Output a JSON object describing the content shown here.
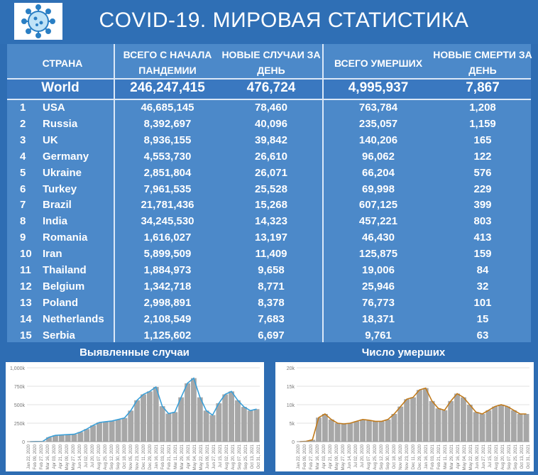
{
  "header": {
    "title": "COVID-19. МИРОВАЯ СТАТИСТИКА",
    "logo": "coronavirus-icon"
  },
  "table": {
    "columns": [
      "СТРАНА",
      "ВСЕГО С НАЧАЛА ПАНДЕМИИ",
      "НОВЫЕ СЛУЧАИ ЗА ДЕНЬ",
      "ВСЕГО УМЕРШИХ",
      "НОВЫЕ СМЕРТИ ЗА ДЕНЬ"
    ],
    "world": {
      "name": "World",
      "total_cases": "246,247,415",
      "new_cases": "476,724",
      "total_deaths": "4,995,937",
      "new_deaths": "7,867"
    },
    "rows": [
      {
        "rank": "1",
        "country": "USA",
        "total_cases": "46,685,145",
        "new_cases": "78,460",
        "total_deaths": "763,784",
        "new_deaths": "1,208"
      },
      {
        "rank": "2",
        "country": "Russia",
        "total_cases": "8,392,697",
        "new_cases": "40,096",
        "total_deaths": "235,057",
        "new_deaths": "1,159"
      },
      {
        "rank": "3",
        "country": "UK",
        "total_cases": "8,936,155",
        "new_cases": "39,842",
        "total_deaths": "140,206",
        "new_deaths": "165"
      },
      {
        "rank": "4",
        "country": "Germany",
        "total_cases": "4,553,730",
        "new_cases": "26,610",
        "total_deaths": "96,062",
        "new_deaths": "122"
      },
      {
        "rank": "5",
        "country": "Ukraine",
        "total_cases": "2,851,804",
        "new_cases": "26,071",
        "total_deaths": "66,204",
        "new_deaths": "576"
      },
      {
        "rank": "6",
        "country": "Turkey",
        "total_cases": "7,961,535",
        "new_cases": "25,528",
        "total_deaths": "69,998",
        "new_deaths": "229"
      },
      {
        "rank": "7",
        "country": "Brazil",
        "total_cases": "21,781,436",
        "new_cases": "15,268",
        "total_deaths": "607,125",
        "new_deaths": "399"
      },
      {
        "rank": "8",
        "country": "India",
        "total_cases": "34,245,530",
        "new_cases": "14,323",
        "total_deaths": "457,221",
        "new_deaths": "803"
      },
      {
        "rank": "9",
        "country": "Romania",
        "total_cases": "1,616,027",
        "new_cases": "13,197",
        "total_deaths": "46,430",
        "new_deaths": "413"
      },
      {
        "rank": "10",
        "country": "Iran",
        "total_cases": "5,899,509",
        "new_cases": "11,409",
        "total_deaths": "125,875",
        "new_deaths": "159"
      },
      {
        "rank": "11",
        "country": "Thailand",
        "total_cases": "1,884,973",
        "new_cases": "9,658",
        "total_deaths": "19,006",
        "new_deaths": "84"
      },
      {
        "rank": "12",
        "country": "Belgium",
        "total_cases": "1,342,718",
        "new_cases": "8,771",
        "total_deaths": "25,946",
        "new_deaths": "32"
      },
      {
        "rank": "13",
        "country": "Poland",
        "total_cases": "2,998,891",
        "new_cases": "8,378",
        "total_deaths": "76,773",
        "new_deaths": "101"
      },
      {
        "rank": "14",
        "country": "Netherlands",
        "total_cases": "2,108,549",
        "new_cases": "7,683",
        "total_deaths": "18,371",
        "new_deaths": "15"
      },
      {
        "rank": "15",
        "country": "Serbia",
        "total_cases": "1,125,602",
        "new_cases": "6,697",
        "total_deaths": "9,761",
        "new_deaths": "63"
      }
    ]
  },
  "colors": {
    "background": "#2e6db3",
    "table_bg": "#4c89c9",
    "cases_line": "#3a9fd8",
    "deaths_line": "#c07a1c",
    "bars": "#a7a7a7"
  },
  "chart_data": [
    {
      "type": "bar",
      "title": "Выявленные случаи",
      "ylim": [
        0,
        1000000
      ],
      "yticks": [
        "0",
        "250k",
        "500k",
        "750k",
        "1,000k"
      ],
      "xticks": [
        "Jan 22, 2020",
        "Feb 09, 2020",
        "Feb 27, 2020",
        "Mar 16, 2020",
        "Apr 03, 2020",
        "Apr 21, 2020",
        "May 09, 2020",
        "May 27, 2020",
        "Jun 14, 2020",
        "Jul 02, 2020",
        "Jul 20, 2020",
        "Aug 07, 2020",
        "Aug 25, 2020",
        "Sep 12, 2020",
        "Sep 30, 2020",
        "Oct 18, 2020",
        "Nov 05, 2020",
        "Nov 23, 2020",
        "Dec 11, 2020",
        "Dec 29, 2020",
        "Jan 16, 2021",
        "Feb 03, 2021",
        "Feb 21, 2021",
        "Mar 11, 2021",
        "Mar 29, 2021",
        "Apr 16, 2021",
        "May 04, 2021",
        "May 22, 2021",
        "Jun 09, 2021",
        "Jun 27, 2021",
        "Jul 15, 2021",
        "Aug 02, 2021",
        "Aug 20, 2021",
        "Sep 07, 2021",
        "Sep 25, 2021",
        "Oct 13, 2021",
        "Oct 31, 2021"
      ],
      "grid": true,
      "series": [
        {
          "kind": "bar",
          "values": [
            0,
            2000,
            3000,
            60000,
            85000,
            90000,
            95000,
            100000,
            130000,
            170000,
            220000,
            260000,
            270000,
            280000,
            300000,
            320000,
            420000,
            560000,
            640000,
            680000,
            740000,
            480000,
            380000,
            400000,
            600000,
            790000,
            860000,
            600000,
            420000,
            360000,
            520000,
            640000,
            680000,
            560000,
            470000,
            420000,
            440000
          ]
        },
        {
          "kind": "line",
          "values": [
            0,
            2000,
            3000,
            60000,
            85000,
            90000,
            95000,
            100000,
            130000,
            170000,
            220000,
            260000,
            270000,
            280000,
            300000,
            320000,
            420000,
            560000,
            640000,
            680000,
            740000,
            480000,
            380000,
            400000,
            600000,
            790000,
            860000,
            600000,
            420000,
            360000,
            520000,
            640000,
            680000,
            560000,
            470000,
            420000,
            440000
          ]
        }
      ]
    },
    {
      "type": "bar",
      "title": "Число умерших",
      "ylim": [
        0,
        20000
      ],
      "yticks": [
        "0",
        "5k",
        "10k",
        "15k",
        "20k"
      ],
      "xticks": [
        "Jan 22, 2020",
        "Feb 09, 2020",
        "Feb 27, 2020",
        "Mar 16, 2020",
        "Apr 03, 2020",
        "Apr 21, 2020",
        "May 09, 2020",
        "May 27, 2020",
        "Jun 14, 2020",
        "Jul 02, 2020",
        "Jul 20, 2020",
        "Aug 07, 2020",
        "Aug 25, 2020",
        "Sep 12, 2020",
        "Sep 30, 2020",
        "Oct 18, 2020",
        "Nov 05, 2020",
        "Nov 23, 2020",
        "Dec 11, 2020",
        "Dec 29, 2020",
        "Jan 16, 2021",
        "Feb 03, 2021",
        "Feb 21, 2021",
        "Mar 11, 2021",
        "Mar 29, 2021",
        "Apr 16, 2021",
        "May 04, 2021",
        "May 22, 2021",
        "Jun 09, 2021",
        "Jun 27, 2021",
        "Jul 15, 2021",
        "Aug 02, 2021",
        "Aug 20, 2021",
        "Sep 07, 2021",
        "Sep 25, 2021",
        "Oct 13, 2021",
        "Oct 31, 2021"
      ],
      "grid": true,
      "series": [
        {
          "kind": "bar",
          "values": [
            0,
            100,
            500,
            6500,
            7500,
            6000,
            5000,
            4800,
            5000,
            5500,
            6000,
            5800,
            5500,
            5500,
            6000,
            7500,
            9500,
            11500,
            12000,
            14000,
            14500,
            11000,
            9000,
            8500,
            11000,
            13000,
            12000,
            10000,
            8000,
            7500,
            8500,
            9500,
            10000,
            9500,
            8500,
            7500,
            7500
          ]
        },
        {
          "kind": "line",
          "values": [
            0,
            100,
            500,
            6500,
            7500,
            6000,
            5000,
            4800,
            5000,
            5500,
            6000,
            5800,
            5500,
            5500,
            6000,
            7500,
            9500,
            11500,
            12000,
            14000,
            14500,
            11000,
            9000,
            8500,
            11000,
            13000,
            12000,
            10000,
            8000,
            7500,
            8500,
            9500,
            10000,
            9500,
            8500,
            7500,
            7500
          ]
        }
      ]
    }
  ]
}
